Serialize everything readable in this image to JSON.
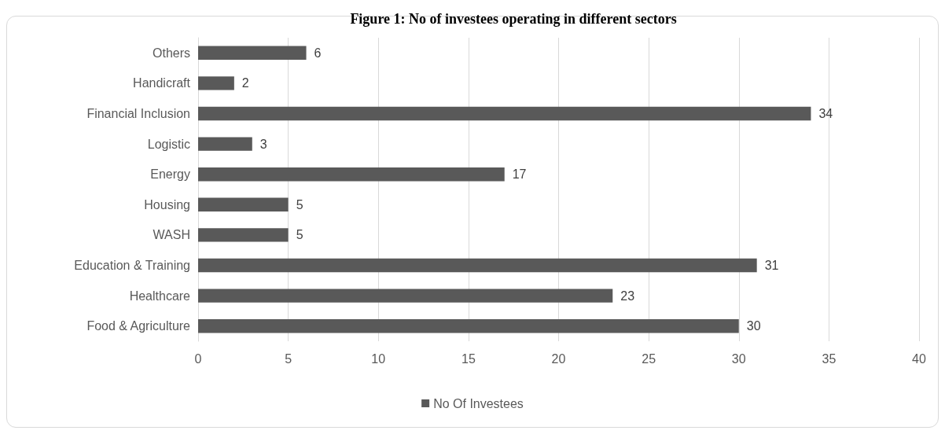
{
  "chart_data": {
    "type": "bar",
    "orientation": "horizontal",
    "title": "Figure 1: No of investees operating in different sectors",
    "categories": [
      "Others",
      "Handicraft",
      "Financial Inclusion",
      "Logistic",
      "Energy",
      "Housing",
      "WASH",
      "Education & Training",
      "Healthcare",
      "Food & Agriculture"
    ],
    "series": [
      {
        "name": "No Of Investees",
        "color": "#595959",
        "values": [
          6,
          2,
          34,
          3,
          17,
          5,
          5,
          31,
          23,
          30
        ]
      }
    ],
    "xlim": [
      0,
      40
    ],
    "xticks": [
      0,
      5,
      10,
      15,
      20,
      25,
      30,
      35,
      40
    ],
    "grid": "x",
    "legend": "bottom",
    "data_labels": true
  }
}
